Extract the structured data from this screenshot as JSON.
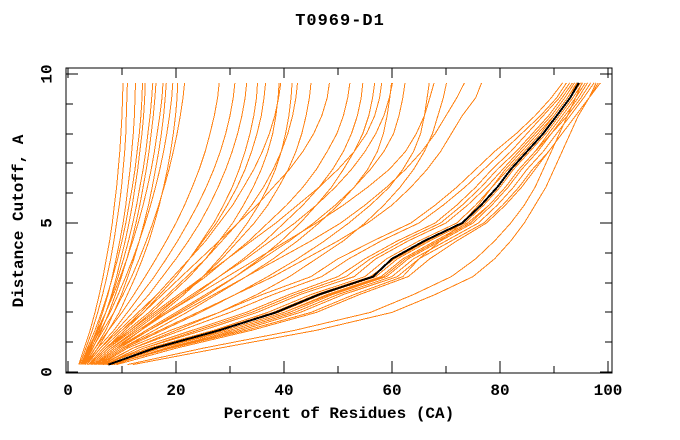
{
  "page": {
    "background": "#ffffff"
  },
  "chart_data": {
    "type": "line",
    "title": "T0969-D1",
    "xlabel": "Percent of Residues (CA)",
    "ylabel": "Distance Cutoff, A",
    "xlim": [
      0,
      100
    ],
    "ylim": [
      0,
      10
    ],
    "x_major_ticks": [
      0,
      20,
      40,
      60,
      80,
      100
    ],
    "x_minor_ticks": [
      10,
      30,
      50,
      70,
      90
    ],
    "y_major_ticks": [
      0,
      5,
      10
    ],
    "y_minor_ticks": [
      1,
      2,
      3,
      4,
      6,
      7,
      8,
      9
    ],
    "grid": false,
    "legend": false,
    "model_color": "#ff8212",
    "reference_color": "#000000",
    "axis_color": "#000000",
    "distance_grid": [
      0.25,
      0.8,
      1.4,
      2.0,
      2.6,
      3.2,
      3.8,
      4.4,
      5.0,
      5.6,
      6.2,
      6.8,
      7.4,
      8.0,
      8.6,
      9.2,
      9.7
    ],
    "series": [
      {
        "role": "model",
        "percents": [
          3,
          4.5,
          6.5,
          8.5,
          10.2,
          11.8,
          13.2,
          14.5,
          15.7,
          16.8,
          17.8,
          18.7,
          19.5,
          20.2,
          20.8,
          21.3,
          21.6
        ]
      },
      {
        "role": "model",
        "percents": [
          3.5,
          5.5,
          7.5,
          9.5,
          11,
          12.5,
          13.8,
          15,
          16,
          16.9,
          17.7,
          18.4,
          19,
          19.5,
          19.9,
          20.2,
          20.3
        ]
      },
      {
        "role": "model",
        "percents": [
          2.8,
          4.2,
          6,
          7.8,
          9.3,
          10.7,
          12,
          13.2,
          14.3,
          15.3,
          16.2,
          17,
          17.7,
          18.3,
          18.8,
          19.2,
          19.4
        ]
      },
      {
        "role": "model",
        "percents": [
          3.2,
          5,
          7,
          8.5,
          9.9,
          11.1,
          12.2,
          13.2,
          14.1,
          14.9,
          15.6,
          16.2,
          16.8,
          17.3,
          17.7,
          18,
          18.2
        ]
      },
      {
        "role": "model",
        "percents": [
          2.5,
          3.8,
          5.4,
          7,
          8.4,
          9.7,
          10.9,
          12,
          13,
          13.9,
          14.7,
          15.4,
          16,
          16.5,
          17,
          17.4,
          17.6
        ]
      },
      {
        "role": "model",
        "percents": [
          3,
          4.6,
          6.2,
          7.6,
          8.8,
          9.9,
          10.9,
          11.8,
          12.6,
          13.3,
          13.9,
          14.5,
          15,
          15.4,
          15.8,
          16.1,
          16.3
        ]
      },
      {
        "role": "model",
        "percents": [
          2.6,
          4,
          5.6,
          7,
          8.2,
          9.3,
          10.3,
          11.2,
          12,
          12.7,
          13.3,
          13.9,
          14.4,
          14.8,
          15.2,
          15.5,
          15.7
        ]
      },
      {
        "role": "model",
        "percents": [
          2.9,
          4.3,
          5.8,
          7,
          8.1,
          9,
          9.8,
          10.6,
          11.3,
          11.9,
          12.4,
          12.9,
          13.3,
          13.7,
          14,
          14.2,
          14.3
        ]
      },
      {
        "role": "model",
        "percents": [
          2.4,
          3.6,
          5,
          6.2,
          7.3,
          8.3,
          9.2,
          10,
          10.7,
          11.3,
          11.9,
          12.4,
          12.8,
          13.2,
          13.5,
          13.7,
          13.8
        ]
      },
      {
        "role": "model",
        "percents": [
          2.7,
          4,
          5.3,
          6.4,
          7.4,
          8.2,
          8.9,
          9.6,
          10.2,
          10.7,
          11.1,
          11.5,
          11.8,
          12.1,
          12.3,
          12.4,
          12.5
        ]
      },
      {
        "role": "model",
        "percents": [
          2.2,
          3.3,
          4.5,
          5.5,
          6.4,
          7.2,
          7.9,
          8.5,
          9,
          9.5,
          9.9,
          10.2,
          10.5,
          10.7,
          10.8,
          10.9,
          11
        ]
      },
      {
        "role": "model",
        "percents": [
          2,
          3,
          4.1,
          5,
          5.8,
          6.5,
          7.1,
          7.7,
          8.2,
          8.6,
          9,
          9.3,
          9.6,
          9.8,
          10,
          10.1,
          10.2
        ]
      },
      {
        "role": "model",
        "percents": [
          4.5,
          8,
          12.5,
          17,
          21,
          25,
          28.5,
          31.5,
          34.5,
          37,
          39,
          40.8,
          42.2,
          43.3,
          44.1,
          44.7,
          45
        ]
      },
      {
        "role": "model",
        "percents": [
          4,
          7,
          11,
          15,
          18.5,
          22,
          25.5,
          28.5,
          31.5,
          34,
          36.2,
          38,
          39.5,
          40.7,
          41.6,
          42.2,
          42.5
        ]
      },
      {
        "role": "model",
        "percents": [
          5,
          9,
          13.5,
          17.5,
          21.5,
          25,
          28,
          30.8,
          33.2,
          35.3,
          37,
          38.4,
          39.5,
          40.3,
          40.9,
          41.3,
          41.5
        ]
      },
      {
        "role": "model",
        "percents": [
          3.5,
          6,
          9.5,
          13,
          16.5,
          19.5,
          22.5,
          25.5,
          28,
          30.5,
          32.5,
          34.4,
          36,
          37.3,
          38.3,
          39,
          39.4
        ]
      },
      {
        "role": "model",
        "percents": [
          4.2,
          7.5,
          11.5,
          15.5,
          19,
          22.5,
          25.5,
          28,
          30.5,
          32.5,
          34.3,
          35.8,
          37,
          37.9,
          38.5,
          38.9,
          39.1
        ]
      },
      {
        "role": "model",
        "percents": [
          3.8,
          6.5,
          10,
          13.5,
          16.5,
          19.5,
          22.5,
          25,
          27.5,
          29.5,
          31.3,
          32.8,
          34,
          35,
          35.8,
          36.3,
          36.6
        ]
      },
      {
        "role": "model",
        "percents": [
          4,
          7,
          10.5,
          14,
          17,
          20,
          22.5,
          24.8,
          27,
          28.8,
          30.4,
          31.7,
          32.8,
          33.7,
          34.4,
          34.9,
          35.1
        ]
      },
      {
        "role": "model",
        "percents": [
          3.5,
          6,
          9,
          12,
          15,
          17.5,
          20,
          22.3,
          24.4,
          26.2,
          27.8,
          29.2,
          30.4,
          31.4,
          32.2,
          32.8,
          33.1
        ]
      },
      {
        "role": "model",
        "percents": [
          3.2,
          5.5,
          8.5,
          11,
          13.5,
          16,
          18.2,
          20.3,
          22.2,
          24,
          25.6,
          27,
          28.2,
          29.2,
          30,
          30.6,
          30.9
        ]
      },
      {
        "role": "model",
        "percents": [
          3,
          5,
          7.5,
          10,
          12.2,
          14.3,
          16.3,
          18.2,
          20,
          21.6,
          23,
          24.3,
          25.4,
          26.3,
          27.1,
          27.7,
          28
        ]
      },
      {
        "role": "model",
        "percents": [
          5,
          9,
          14.5,
          20,
          25.5,
          31,
          36,
          41,
          45.5,
          49.5,
          53,
          56,
          58.5,
          60.3,
          61.3,
          62,
          62.4
        ]
      },
      {
        "role": "model",
        "percents": [
          4.5,
          8,
          13,
          18,
          23,
          28,
          33,
          37.5,
          42,
          46,
          49.5,
          52.5,
          55,
          57,
          58.5,
          59.5,
          60.1
        ]
      },
      {
        "role": "model",
        "percents": [
          5.5,
          10,
          16,
          22,
          27.5,
          33,
          38,
          42.5,
          46.5,
          50,
          53,
          55.5,
          57.3,
          58.4,
          59.1,
          59.6,
          59.9
        ]
      },
      {
        "role": "model",
        "percents": [
          4,
          7,
          11.5,
          16,
          20.5,
          25,
          29.5,
          34,
          38.5,
          42.5,
          46.5,
          50,
          53,
          55.3,
          56.8,
          57.7,
          58.1
        ]
      },
      {
        "role": "model",
        "percents": [
          5.2,
          9.5,
          15,
          20.5,
          26,
          31,
          35.5,
          39.5,
          43,
          46,
          48.8,
          51,
          53,
          54.6,
          55.7,
          56.4,
          56.8
        ]
      },
      {
        "role": "model",
        "percents": [
          4.8,
          8.5,
          13.5,
          18.5,
          23.5,
          28,
          32.5,
          36.5,
          40,
          43.5,
          46.5,
          49,
          51,
          52.5,
          53.6,
          54.3,
          54.6
        ]
      },
      {
        "role": "model",
        "percents": [
          4.2,
          7.5,
          12,
          16.5,
          21,
          25.5,
          29.5,
          33.5,
          37,
          40.5,
          43.5,
          46,
          48,
          49.8,
          51,
          51.8,
          52.2
        ]
      },
      {
        "role": "model",
        "percents": [
          3.8,
          6.5,
          10,
          14,
          17.5,
          21,
          24.5,
          28,
          31.5,
          35,
          38,
          41,
          43.5,
          45.5,
          47,
          48,
          48.4
        ]
      },
      {
        "role": "model",
        "percents": [
          5.5,
          10,
          17,
          24,
          31,
          38,
          44,
          50,
          55.5,
          60,
          63.5,
          66.5,
          69,
          71,
          73,
          75.5,
          76.6
        ]
      },
      {
        "role": "model",
        "percents": [
          5,
          9,
          15,
          21,
          27,
          33,
          39,
          45,
          50.5,
          55,
          59,
          62.5,
          65.5,
          68,
          70,
          72,
          73.4
        ]
      },
      {
        "role": "model",
        "percents": [
          6.5,
          12,
          20,
          28,
          35,
          41,
          46,
          51,
          55,
          58.5,
          61.5,
          64,
          66,
          67.5,
          68.5,
          69.5,
          70.1
        ]
      },
      {
        "role": "model",
        "percents": [
          4.5,
          8,
          13,
          18.5,
          24,
          29.5,
          35,
          40.5,
          46,
          51,
          55.5,
          59.5,
          62.5,
          64.5,
          66,
          67,
          67.8
        ]
      },
      {
        "role": "model",
        "percents": [
          5.8,
          10.5,
          17.5,
          24.5,
          31,
          37,
          42.5,
          47.5,
          52,
          56,
          59.5,
          62,
          64,
          65.3,
          66,
          66.5,
          66.9
        ]
      },
      {
        "role": "model",
        "percents": [
          8,
          17,
          29,
          40,
          48,
          58,
          62,
          68,
          74,
          78,
          81,
          83.5,
          86.5,
          89.5,
          92,
          94.5,
          96.2
        ]
      },
      {
        "role": "model",
        "percents": [
          7,
          14,
          25,
          35,
          43,
          53,
          57,
          63,
          70,
          74,
          77.5,
          80.5,
          83.5,
          86.5,
          89.5,
          92,
          93.8
        ]
      },
      {
        "role": "model",
        "percents": [
          6.5,
          15,
          27,
          37,
          45,
          55,
          59,
          65,
          72,
          75.5,
          78.5,
          81.5,
          84.5,
          87.5,
          90,
          92.5,
          94.2
        ]
      },
      {
        "role": "model",
        "percents": [
          8.5,
          18,
          31,
          42,
          50,
          60,
          64,
          70,
          76,
          79.5,
          82.5,
          85,
          88,
          90.5,
          93,
          95.5,
          97.4
        ]
      },
      {
        "role": "model",
        "percents": [
          7.2,
          16,
          28,
          39,
          47,
          57,
          61,
          67,
          73.5,
          77,
          80,
          82.5,
          85.5,
          88.5,
          91,
          93.5,
          95.3
        ]
      },
      {
        "role": "model",
        "percents": [
          6.8,
          13,
          23,
          33,
          41,
          50,
          55,
          61,
          68,
          72,
          75.5,
          78.5,
          82,
          85,
          88,
          91,
          92.9
        ]
      },
      {
        "role": "model",
        "percents": [
          7.8,
          17,
          30,
          41,
          49,
          59,
          63,
          69,
          75,
          78.5,
          81.5,
          84,
          87,
          89.5,
          92.5,
          95,
          96.8
        ]
      },
      {
        "role": "model",
        "percents": [
          6.2,
          12,
          21,
          30,
          38,
          47,
          52,
          58,
          65,
          69.5,
          73.5,
          77,
          80.5,
          84,
          87.5,
          90.5,
          92.3
        ]
      },
      {
        "role": "model",
        "percents": [
          7.4,
          15.5,
          27.5,
          38,
          46,
          56,
          60.5,
          66.5,
          73,
          76.5,
          79.5,
          82,
          85,
          88,
          90.5,
          93,
          94.9
        ]
      },
      {
        "role": "model",
        "percents": [
          8.2,
          18.5,
          32,
          43,
          51,
          61,
          65,
          71,
          77,
          80.5,
          83.5,
          86,
          89,
          91.5,
          94,
          96.5,
          98.2
        ]
      },
      {
        "role": "model",
        "percents": [
          6,
          11,
          19,
          28,
          36,
          45,
          50,
          56.5,
          63.5,
          68,
          72,
          75.5,
          79,
          83,
          86.5,
          89.5,
          91.6
        ]
      },
      {
        "role": "model",
        "percents": [
          7.6,
          16.5,
          29,
          40,
          48.5,
          58.5,
          62.5,
          68.5,
          74.5,
          78,
          81,
          83.5,
          86.5,
          89,
          91.5,
          94,
          95.8
        ]
      },
      {
        "role": "model",
        "percents": [
          6.6,
          14,
          24,
          34,
          42,
          51.5,
          56,
          62,
          69,
          73,
          76.5,
          79.5,
          83,
          86,
          89,
          91.5,
          93.4
        ]
      },
      {
        "role": "model",
        "percents": [
          9,
          20,
          34,
          46,
          54,
          63,
          67,
          72,
          77.5,
          81,
          84,
          86.5,
          89,
          91.5,
          94,
          96.5,
          98.6
        ]
      },
      {
        "role": "model",
        "percents": [
          8,
          19,
          33,
          45,
          53,
          62,
          65,
          69,
          73,
          76,
          78.5,
          81,
          84,
          87,
          90,
          92.5,
          94.4
        ]
      },
      {
        "role": "model",
        "percents": [
          12,
          28,
          46,
          60,
          68,
          75,
          79,
          82,
          84.5,
          86.5,
          88.5,
          90,
          91.5,
          93,
          94.5,
          96.5,
          97.8
        ]
      },
      {
        "role": "model",
        "percents": [
          11,
          25,
          42,
          56,
          64,
          71,
          75.5,
          79,
          82,
          84.5,
          86.5,
          88,
          89.5,
          91,
          92.5,
          94,
          95.2
        ]
      },
      {
        "role": "reference",
        "percents": [
          7.5,
          16,
          28,
          38.5,
          46.5,
          56.5,
          60,
          66,
          73,
          76.5,
          79.5,
          82,
          85,
          88,
          90.5,
          93,
          94.6
        ]
      }
    ]
  }
}
